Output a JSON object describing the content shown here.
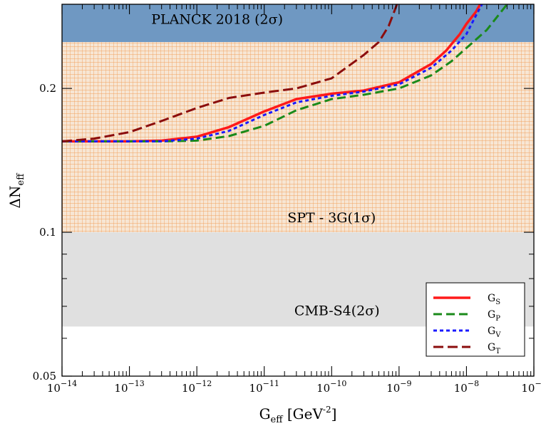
{
  "chart_data": {
    "type": "line",
    "xlabel": {
      "main": "G",
      "sub": "eff",
      "rest": " [GeV",
      "sup": "-2",
      "close": "]"
    },
    "ylabel": {
      "main": "ΔN",
      "sub": "eff"
    },
    "x_scale": "log",
    "y_scale": "log",
    "xlim": [
      1e-14,
      1e-07
    ],
    "ylim": [
      0.05,
      0.3
    ],
    "x_ticks": [
      {
        "value": 1e-14,
        "base": "10",
        "exp": "−14"
      },
      {
        "value": 1e-13,
        "base": "10",
        "exp": "−13"
      },
      {
        "value": 1e-12,
        "base": "10",
        "exp": "−12"
      },
      {
        "value": 1e-11,
        "base": "10",
        "exp": "−11"
      },
      {
        "value": 1e-10,
        "base": "10",
        "exp": "−10"
      },
      {
        "value": 1e-09,
        "base": "10",
        "exp": "−9"
      },
      {
        "value": 1e-08,
        "base": "10",
        "exp": "−8"
      },
      {
        "value": 1e-07,
        "base": "10",
        "exp": "−7"
      }
    ],
    "y_ticks": [
      {
        "value": 0.05,
        "label": "0.05"
      },
      {
        "value": 0.1,
        "label": "0.1"
      },
      {
        "value": 0.2,
        "label": "0.2"
      }
    ],
    "bands": [
      {
        "name": "PLANCK 2018 (2σ)",
        "ymin": 0.25,
        "ymax": 0.3,
        "color": "#6f98c2",
        "pattern": "none",
        "label_x": 2e-12,
        "label_y": 0.273
      },
      {
        "name": "SPT - 3G(1σ)",
        "ymin": 0.1,
        "ymax": 0.25,
        "color": "#f5e2cf",
        "grid_color": "#f0a060",
        "pattern": "grid",
        "label_x": 1e-10,
        "label_y": 0.105
      },
      {
        "name": "CMB-S4(2σ)",
        "ymin": 0.0635,
        "ymax": 0.1,
        "color": "#e0e0e0",
        "pattern": "none",
        "label_x": 1.2e-10,
        "label_y": 0.067
      }
    ],
    "series": [
      {
        "name": "G",
        "sub": "S",
        "color": "#ff1a1a",
        "dash": "none",
        "width": 3.5,
        "x": [
          1e-14,
          3e-14,
          1e-13,
          3e-13,
          1e-12,
          3e-12,
          1e-11,
          3e-11,
          1e-10,
          3e-10,
          1e-09,
          3e-09,
          5e-09,
          8e-09,
          1e-08,
          1.4e-08,
          1.6e-08
        ],
        "y": [
          0.155,
          0.155,
          0.155,
          0.1555,
          0.1585,
          0.166,
          0.179,
          0.19,
          0.195,
          0.198,
          0.206,
          0.225,
          0.24,
          0.26,
          0.273,
          0.29,
          0.3
        ]
      },
      {
        "name": "G",
        "sub": "P",
        "color": "#1a8a1a",
        "dash": "12,6",
        "width": 3,
        "x": [
          1e-14,
          3e-14,
          1e-13,
          3e-13,
          1e-12,
          3e-12,
          1e-11,
          3e-11,
          1e-10,
          3e-10,
          1e-09,
          3e-09,
          6e-09,
          1e-08,
          2e-08,
          3e-08,
          4e-08
        ],
        "y": [
          0.155,
          0.155,
          0.155,
          0.155,
          0.1555,
          0.159,
          0.167,
          0.18,
          0.19,
          0.194,
          0.2,
          0.213,
          0.228,
          0.243,
          0.265,
          0.285,
          0.3
        ]
      },
      {
        "name": "G",
        "sub": "V",
        "color": "#1a1aff",
        "dash": "5,4",
        "width": 3,
        "x": [
          1e-14,
          3e-14,
          1e-13,
          3e-13,
          1e-12,
          3e-12,
          1e-11,
          3e-11,
          1e-10,
          3e-10,
          1e-09,
          3e-09,
          6e-09,
          1e-08,
          1.4e-08,
          1.7e-08
        ],
        "y": [
          0.155,
          0.155,
          0.155,
          0.155,
          0.157,
          0.163,
          0.176,
          0.187,
          0.193,
          0.197,
          0.204,
          0.221,
          0.24,
          0.26,
          0.285,
          0.3
        ]
      },
      {
        "name": "G",
        "sub": "T",
        "color": "#8b0d0d",
        "dash": "14,6",
        "width": 3,
        "x": [
          1e-14,
          3e-14,
          1e-13,
          3e-13,
          1e-12,
          3e-12,
          1e-11,
          3e-11,
          1e-10,
          3e-10,
          5e-10,
          7e-10,
          8.5e-10,
          9.3e-10
        ],
        "y": [
          0.155,
          0.157,
          0.162,
          0.171,
          0.182,
          0.191,
          0.196,
          0.2,
          0.21,
          0.235,
          0.25,
          0.27,
          0.29,
          0.3
        ]
      }
    ],
    "legend": {
      "position": "bottom-right"
    },
    "grid": false
  }
}
